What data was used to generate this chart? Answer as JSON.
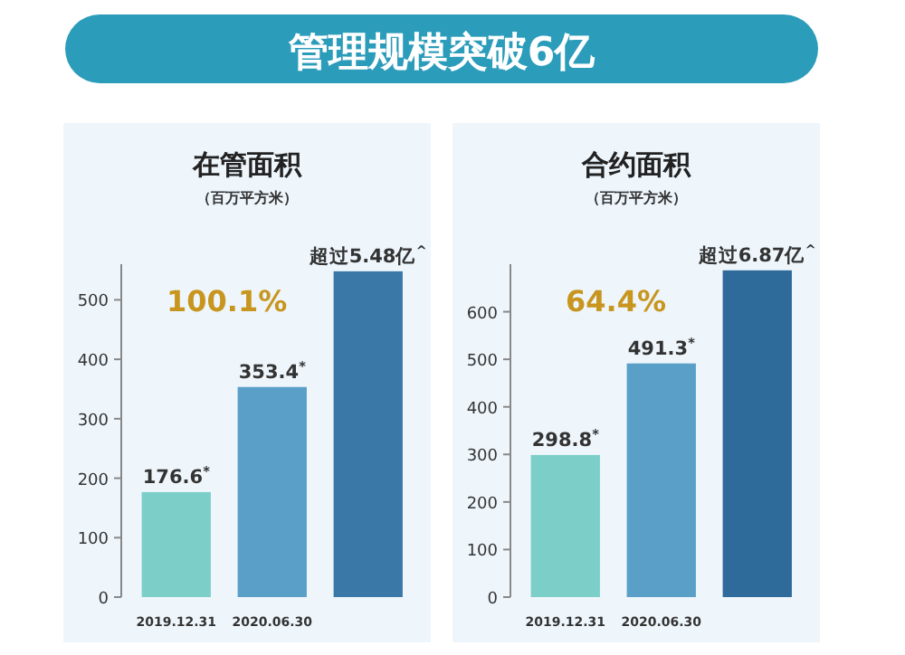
{
  "chart_data": [
    {
      "type": "other",
      "title": "管理规模突破6亿"
    },
    {
      "type": "bar",
      "title": "在管面积",
      "subtitle": "（百万平方米）",
      "categories": [
        "2019.12.31",
        "2020.06.30",
        null
      ],
      "values": [
        176.6,
        353.4,
        548
      ],
      "colors": [
        "#7ccfc9",
        "#5a9fc8",
        "#3a78a8"
      ],
      "value_labels": [
        "176.6$^{*}$",
        "353.4$^{*}$",
        "超过5.48亿$^{^}$"
      ],
      "ylim": [
        0,
        560
      ],
      "yticks": [
        0,
        100,
        200,
        300,
        400,
        500
      ],
      "annotations": [
        "100.1%"
      ]
    },
    {
      "type": "bar",
      "title": "合约面积",
      "subtitle": "（百万平方米）",
      "categories": [
        "2019.12.31",
        "2020.06.30",
        null
      ],
      "values": [
        298.8,
        491.3,
        687
      ],
      "colors": [
        "#7ccfc9",
        "#5a9fc8",
        "#2e6a9a"
      ],
      "value_labels": [
        "298.8$^{*}$",
        "491.3$^{*}$",
        "超过6.87亿$^{^}$"
      ],
      "ylim": [
        0,
        700
      ],
      "yticks": [
        0,
        100,
        200,
        300,
        400,
        500,
        600
      ],
      "annotations": [
        "64.4%"
      ]
    }
  ]
}
